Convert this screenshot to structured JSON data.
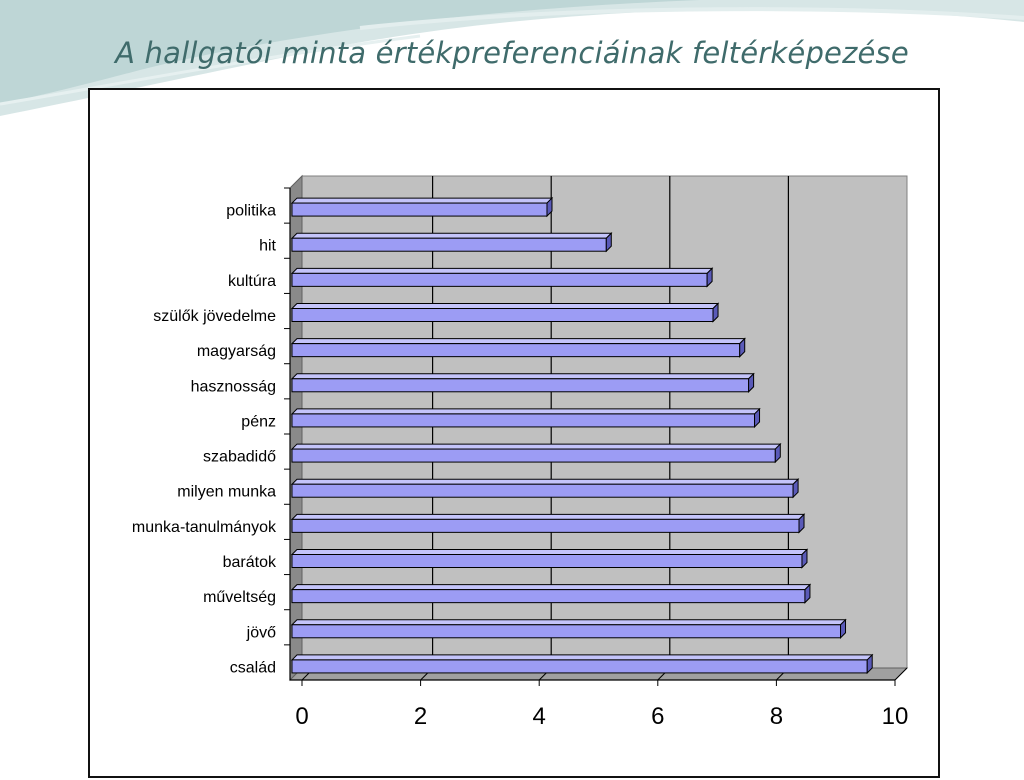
{
  "slide": {
    "title": "A hallgatói minta értékpreferenciáinak feltérképezése"
  },
  "colors": {
    "bar_face": "#9c9cf4",
    "bar_top": "#c4c4fa",
    "bar_side": "#5a5ab8",
    "plot_back": "#c0c0c0",
    "plot_floor": "#a0a0a0",
    "title": "#3f6b6b"
  },
  "chart_data": {
    "type": "bar",
    "orientation": "horizontal",
    "style": "3d",
    "title": "",
    "xlabel": "",
    "ylabel": "",
    "xlim": [
      0,
      10
    ],
    "x_ticks": [
      "0",
      "2",
      "4",
      "6",
      "8",
      "10"
    ],
    "gridlines": "vertical major",
    "legend": "none",
    "categories": [
      "politika",
      "hit",
      "kultúra",
      "szülők jövedelme",
      "magyarság",
      "hasznosság",
      "pénz",
      "szabadidő",
      "milyen munka",
      "munka-tanulmányok",
      "barátok",
      "műveltség",
      "jövő",
      "család"
    ],
    "values": [
      4.3,
      5.3,
      7.0,
      7.1,
      7.55,
      7.7,
      7.8,
      8.15,
      8.45,
      8.55,
      8.6,
      8.65,
      9.25,
      9.7
    ]
  }
}
